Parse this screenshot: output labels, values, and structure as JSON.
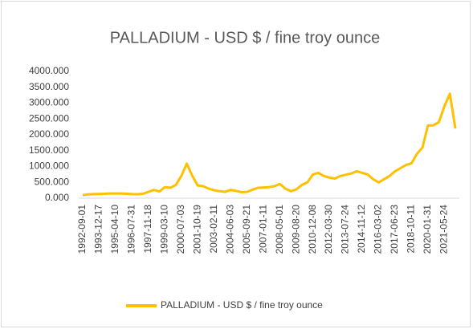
{
  "chart_data": {
    "type": "line",
    "title": "PALLADIUM - USD $  / fine troy ounce",
    "categories": [
      "1992-09-01",
      null,
      null,
      "1993-12-17",
      null,
      null,
      "1995-04-10",
      null,
      null,
      "1996-07-31",
      null,
      null,
      "1997-11-18",
      null,
      null,
      "1999-03-10",
      null,
      null,
      "2000-07-03",
      null,
      null,
      "2001-10-19",
      null,
      null,
      "2003-02-11",
      null,
      null,
      "2004-06-03",
      null,
      null,
      "2005-09-21",
      null,
      null,
      "2007-01-11",
      null,
      null,
      "2008-05-01",
      null,
      null,
      "2009-08-20",
      null,
      null,
      "2010-12-08",
      null,
      null,
      "2012-03-30",
      null,
      null,
      "2013-07-24",
      null,
      null,
      "2014-11-12",
      null,
      null,
      "2016-03-02",
      null,
      null,
      "2017-06-23",
      null,
      null,
      "2018-10-11",
      null,
      null,
      "2020-01-31",
      null,
      null,
      "2021-05-24",
      null,
      null
    ],
    "series": [
      {
        "name": "PALLADIUM - USD $  / fine troy ounce",
        "color": "#FFC000",
        "values": [
          100,
          120,
          130,
          135,
          140,
          150,
          150,
          150,
          140,
          130,
          125,
          140,
          200,
          260,
          210,
          350,
          330,
          420,
          700,
          1090,
          700,
          400,
          380,
          300,
          250,
          220,
          200,
          260,
          230,
          190,
          200,
          270,
          330,
          340,
          350,
          380,
          450,
          300,
          220,
          280,
          420,
          500,
          750,
          800,
          700,
          650,
          620,
          700,
          740,
          780,
          850,
          800,
          750,
          600,
          500,
          600,
          700,
          850,
          950,
          1050,
          1100,
          1400,
          1600,
          2300,
          2300,
          2400,
          2900,
          3300,
          2200
        ]
      }
    ],
    "ylim": [
      0,
      4000
    ],
    "yticks": [
      {
        "value": 0,
        "label": "0.000"
      },
      {
        "value": 500,
        "label": "500.000"
      },
      {
        "value": 1000,
        "label": "1000.000"
      },
      {
        "value": 1500,
        "label": "1500.000"
      },
      {
        "value": 2000,
        "label": "2000.000"
      },
      {
        "value": 2500,
        "label": "2500.000"
      },
      {
        "value": 3000,
        "label": "3000.000"
      },
      {
        "value": 3500,
        "label": "3500.000"
      },
      {
        "value": 4000,
        "label": "4000.000"
      }
    ],
    "legend": "bottom"
  }
}
